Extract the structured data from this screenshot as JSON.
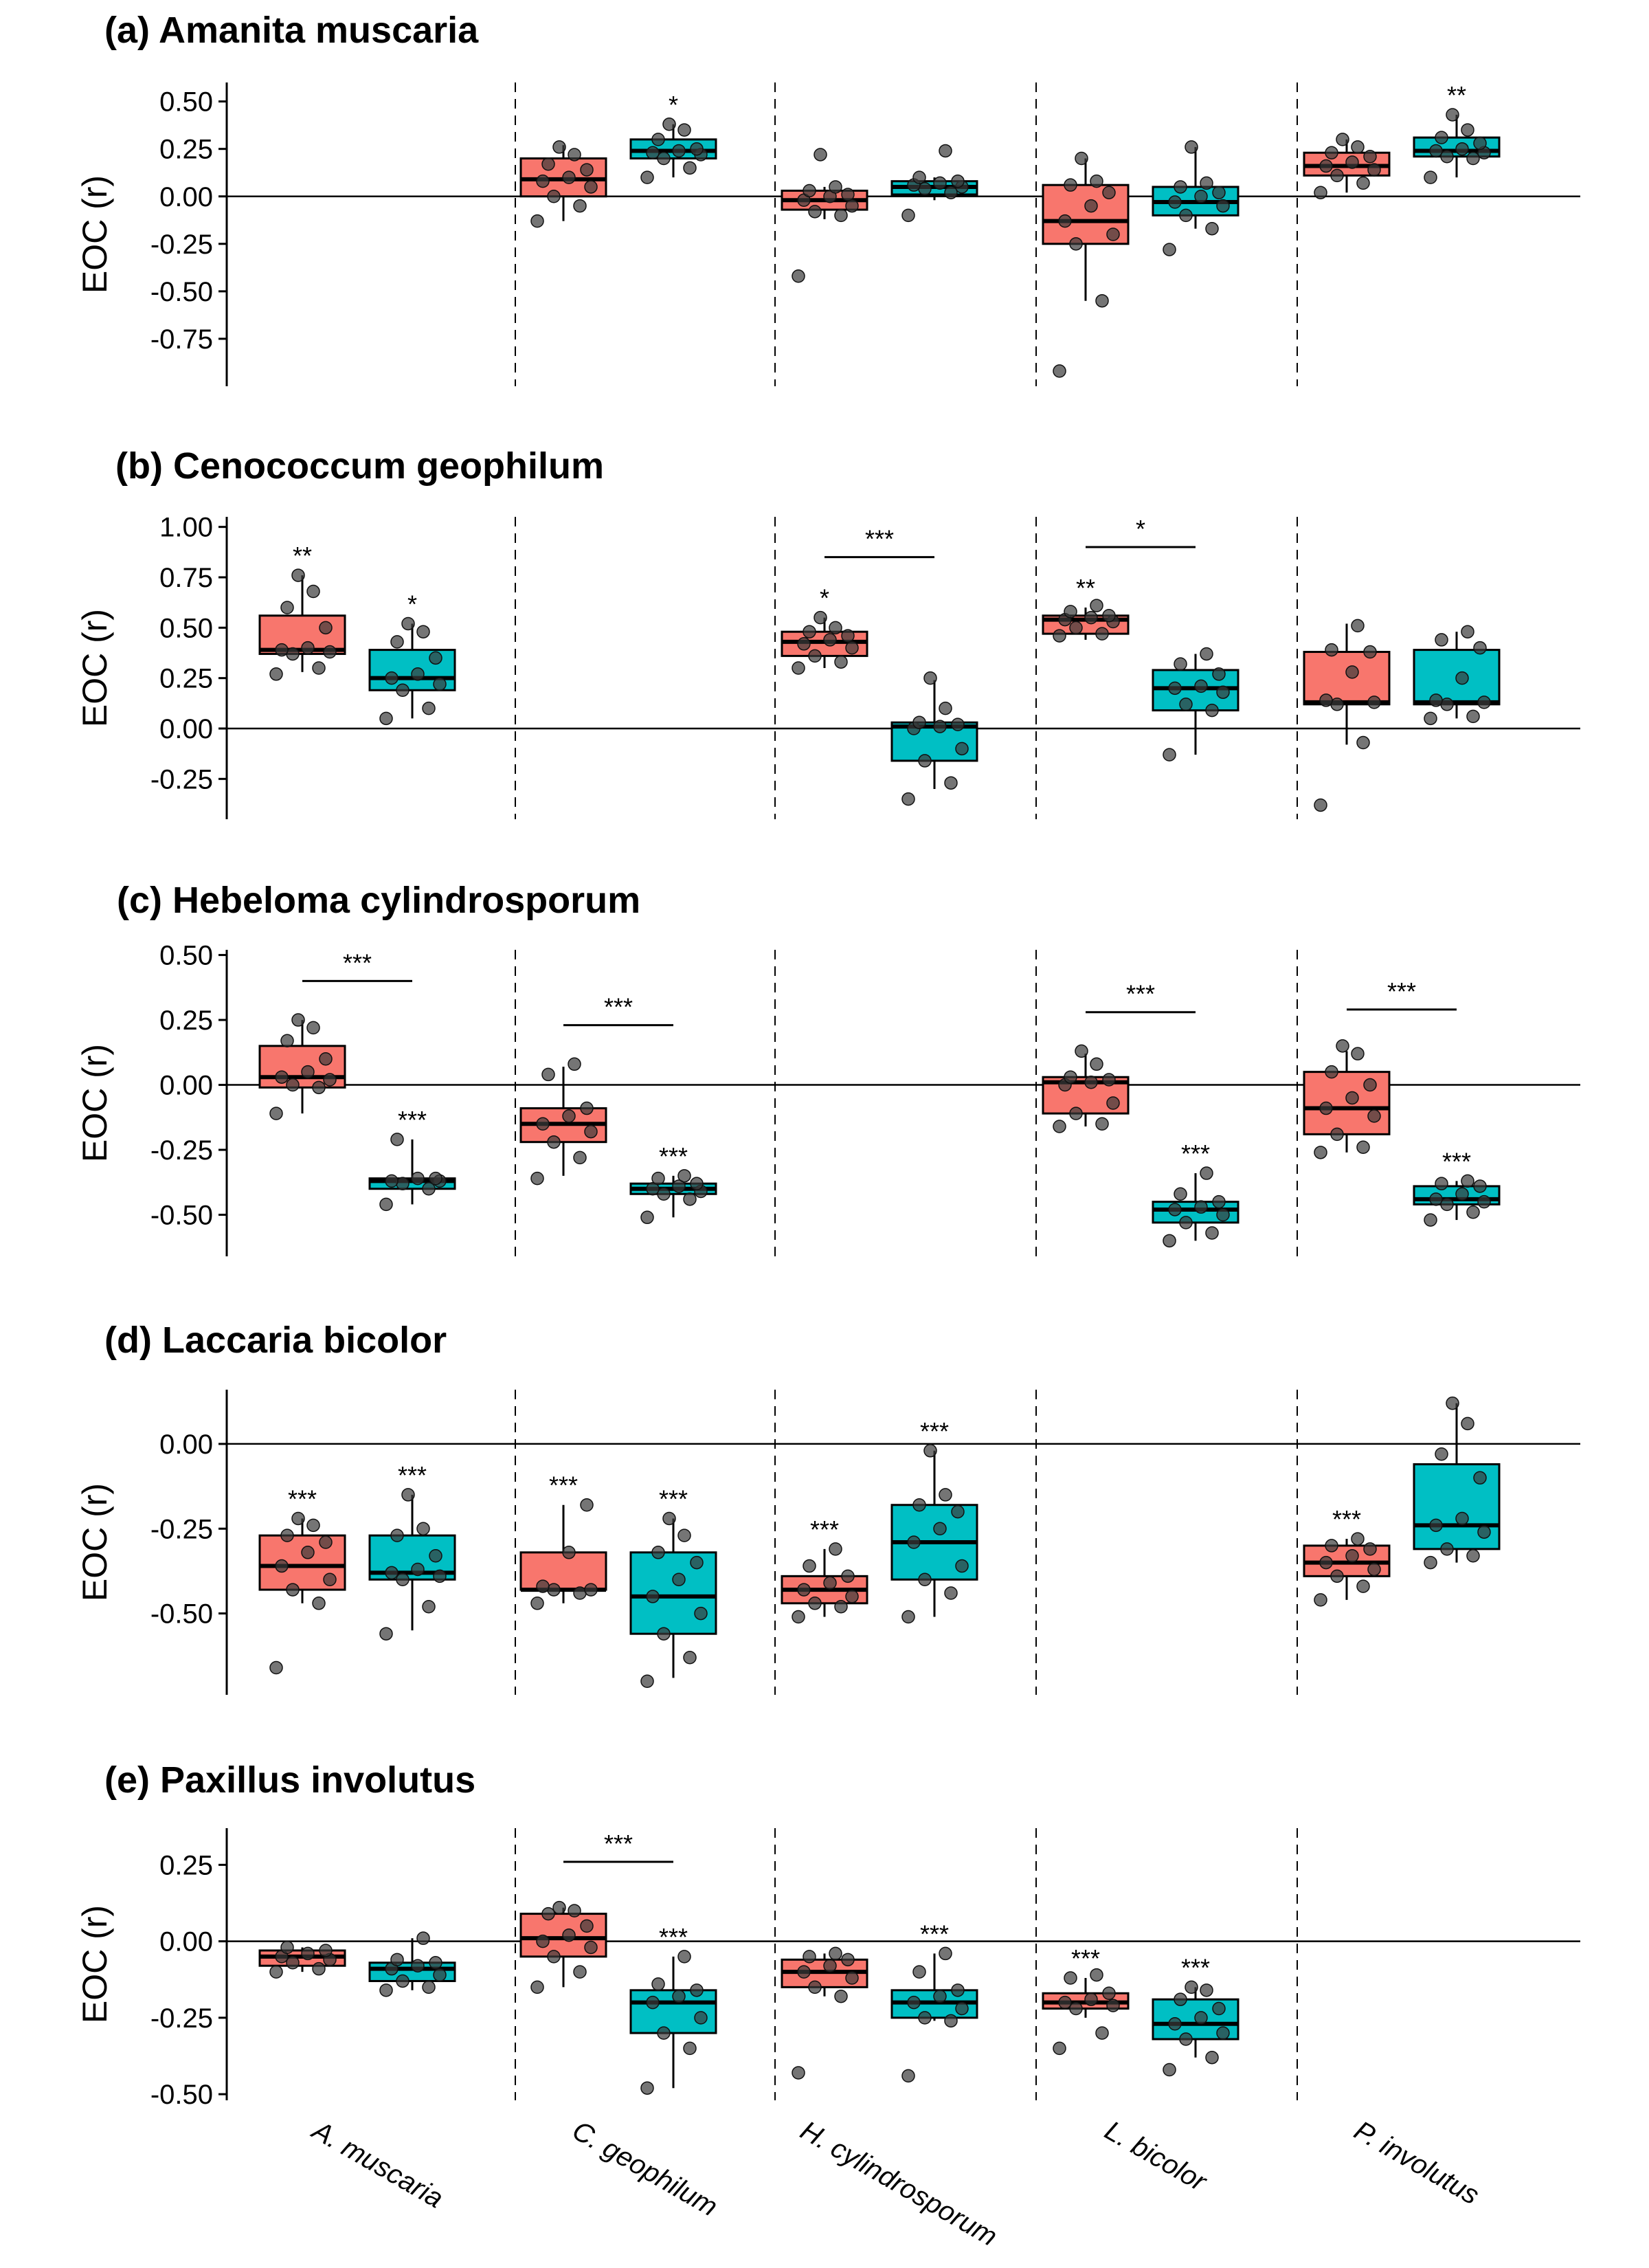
{
  "colors": {
    "group1": "#F8766D",
    "group2": "#00BFC4",
    "point": "#3a3a3a"
  },
  "chart_data": [
    {
      "type": "box",
      "title": "(a) Amanita muscaria",
      "ylabel": "EOC (r)",
      "categories": [
        "A. muscaria",
        "C. geophilum",
        "H. cylindrosporum",
        "L. bicolor",
        "P. involutus"
      ],
      "yticks": [
        0.5,
        0.25,
        0.0,
        -0.25,
        -0.5,
        -0.75
      ],
      "tick_labels": [
        "0.50",
        "0.25",
        "0.00",
        "-0.25",
        "-0.50",
        "-0.75"
      ],
      "ylim": [
        -1.0,
        0.6
      ],
      "boxes": [
        {
          "cat": 1,
          "group": 1,
          "q1": 0.0,
          "med": 0.09,
          "q3": 0.2,
          "wlo": -0.13,
          "whi": 0.27,
          "points": [
            -0.13,
            -0.05,
            0.0,
            0.05,
            0.08,
            0.1,
            0.14,
            0.17,
            0.22,
            0.26
          ],
          "sig": ""
        },
        {
          "cat": 1,
          "group": 2,
          "q1": 0.2,
          "med": 0.24,
          "q3": 0.3,
          "wlo": 0.1,
          "whi": 0.38,
          "points": [
            0.1,
            0.15,
            0.2,
            0.22,
            0.23,
            0.24,
            0.25,
            0.3,
            0.35,
            0.38
          ],
          "sig": "*"
        },
        {
          "cat": 2,
          "group": 1,
          "q1": -0.07,
          "med": -0.02,
          "q3": 0.03,
          "wlo": -0.12,
          "whi": 0.05,
          "points": [
            -0.42,
            -0.1,
            -0.08,
            -0.05,
            -0.02,
            0.0,
            0.01,
            0.03,
            0.05,
            0.22
          ],
          "sig": ""
        },
        {
          "cat": 2,
          "group": 2,
          "q1": 0.01,
          "med": 0.05,
          "q3": 0.08,
          "wlo": -0.02,
          "whi": 0.1,
          "points": [
            -0.1,
            0.02,
            0.04,
            0.05,
            0.06,
            0.07,
            0.08,
            0.1,
            0.24
          ],
          "sig": ""
        },
        {
          "cat": 3,
          "group": 1,
          "q1": -0.25,
          "med": -0.13,
          "q3": 0.06,
          "wlo": -0.55,
          "whi": 0.2,
          "points": [
            -0.92,
            -0.55,
            -0.25,
            -0.2,
            -0.13,
            -0.05,
            0.02,
            0.06,
            0.08,
            0.2
          ],
          "sig": ""
        },
        {
          "cat": 3,
          "group": 2,
          "q1": -0.1,
          "med": -0.03,
          "q3": 0.05,
          "wlo": -0.17,
          "whi": 0.26,
          "points": [
            -0.28,
            -0.17,
            -0.1,
            -0.05,
            -0.03,
            0.0,
            0.02,
            0.05,
            0.07,
            0.26
          ],
          "sig": ""
        },
        {
          "cat": 4,
          "group": 1,
          "q1": 0.11,
          "med": 0.16,
          "q3": 0.23,
          "wlo": 0.02,
          "whi": 0.3,
          "points": [
            0.02,
            0.07,
            0.11,
            0.14,
            0.16,
            0.18,
            0.21,
            0.23,
            0.26,
            0.3
          ],
          "sig": ""
        },
        {
          "cat": 4,
          "group": 2,
          "q1": 0.21,
          "med": 0.24,
          "q3": 0.31,
          "wlo": 0.1,
          "whi": 0.43,
          "points": [
            0.1,
            0.2,
            0.21,
            0.23,
            0.24,
            0.25,
            0.28,
            0.31,
            0.35,
            0.43
          ],
          "sig": "**"
        }
      ],
      "brackets": []
    },
    {
      "type": "box",
      "title": "(b) Cenococcum geophilum",
      "ylabel": "EOC (r)",
      "categories": [
        "A. muscaria",
        "C. geophilum",
        "H. cylindrosporum",
        "L. bicolor",
        "P. involutus"
      ],
      "yticks": [
        1.0,
        0.75,
        0.5,
        0.25,
        0.0,
        -0.25
      ],
      "tick_labels": [
        "1.00",
        "0.75",
        "0.50",
        "0.25",
        "0.00",
        "-0.25"
      ],
      "ylim": [
        -0.45,
        1.05
      ],
      "boxes": [
        {
          "cat": 0,
          "group": 1,
          "q1": 0.37,
          "med": 0.39,
          "q3": 0.56,
          "wlo": 0.28,
          "whi": 0.76,
          "points": [
            0.27,
            0.3,
            0.37,
            0.38,
            0.39,
            0.4,
            0.5,
            0.6,
            0.68,
            0.76
          ],
          "sig": "**"
        },
        {
          "cat": 0,
          "group": 2,
          "q1": 0.19,
          "med": 0.25,
          "q3": 0.39,
          "wlo": 0.05,
          "whi": 0.52,
          "points": [
            0.05,
            0.1,
            0.19,
            0.22,
            0.25,
            0.27,
            0.35,
            0.43,
            0.48,
            0.52
          ],
          "sig": "*"
        },
        {
          "cat": 2,
          "group": 1,
          "q1": 0.36,
          "med": 0.43,
          "q3": 0.48,
          "wlo": 0.3,
          "whi": 0.55,
          "points": [
            0.3,
            0.33,
            0.36,
            0.4,
            0.42,
            0.44,
            0.46,
            0.48,
            0.5,
            0.55
          ],
          "sig": "*"
        },
        {
          "cat": 2,
          "group": 2,
          "q1": -0.16,
          "med": 0.01,
          "q3": 0.03,
          "wlo": -0.3,
          "whi": 0.24,
          "points": [
            -0.35,
            -0.27,
            -0.16,
            -0.1,
            0.0,
            0.01,
            0.02,
            0.03,
            0.1,
            0.25
          ],
          "sig": ""
        },
        {
          "cat": 3,
          "group": 1,
          "q1": 0.47,
          "med": 0.54,
          "q3": 0.56,
          "wlo": 0.44,
          "whi": 0.6,
          "points": [
            0.46,
            0.47,
            0.5,
            0.53,
            0.54,
            0.55,
            0.56,
            0.58,
            0.61
          ],
          "sig": "**"
        },
        {
          "cat": 3,
          "group": 2,
          "q1": 0.09,
          "med": 0.2,
          "q3": 0.29,
          "wlo": -0.13,
          "whi": 0.37,
          "points": [
            -0.13,
            0.09,
            0.12,
            0.18,
            0.2,
            0.21,
            0.27,
            0.32,
            0.37
          ],
          "sig": ""
        },
        {
          "cat": 4,
          "group": 1,
          "q1": 0.12,
          "med": 0.13,
          "q3": 0.38,
          "wlo": -0.08,
          "whi": 0.52,
          "points": [
            -0.38,
            -0.07,
            0.12,
            0.13,
            0.14,
            0.28,
            0.38,
            0.39,
            0.51
          ],
          "sig": ""
        },
        {
          "cat": 4,
          "group": 2,
          "q1": 0.12,
          "med": 0.13,
          "q3": 0.39,
          "wlo": 0.05,
          "whi": 0.48,
          "points": [
            0.05,
            0.06,
            0.12,
            0.13,
            0.14,
            0.25,
            0.4,
            0.44,
            0.48
          ],
          "sig": ""
        }
      ],
      "brackets": [
        {
          "cat": 2,
          "y": 0.85,
          "label": "***"
        },
        {
          "cat": 3,
          "y": 0.9,
          "label": "*"
        }
      ]
    },
    {
      "type": "box",
      "title": "(c) Hebeloma cylindrosporum",
      "ylabel": "EOC (r)",
      "categories": [
        "A. muscaria",
        "C. geophilum",
        "H. cylindrosporum",
        "L. bicolor",
        "P. involutus"
      ],
      "yticks": [
        0.5,
        0.25,
        0.0,
        -0.25,
        -0.5
      ],
      "tick_labels": [
        "0.50",
        "0.25",
        "0.00",
        "-0.25",
        "-0.50"
      ],
      "ylim": [
        -0.66,
        0.52
      ],
      "boxes": [
        {
          "cat": 0,
          "group": 1,
          "q1": -0.01,
          "med": 0.03,
          "q3": 0.15,
          "wlo": -0.11,
          "whi": 0.25,
          "points": [
            -0.11,
            -0.01,
            0.0,
            0.02,
            0.03,
            0.05,
            0.1,
            0.17,
            0.22,
            0.25
          ],
          "sig": ""
        },
        {
          "cat": 0,
          "group": 2,
          "q1": -0.4,
          "med": -0.37,
          "q3": -0.36,
          "wlo": -0.46,
          "whi": -0.21,
          "points": [
            -0.46,
            -0.4,
            -0.38,
            -0.37,
            -0.37,
            -0.36,
            -0.36,
            -0.21
          ],
          "sig": "***"
        },
        {
          "cat": 1,
          "group": 1,
          "q1": -0.22,
          "med": -0.15,
          "q3": -0.09,
          "wlo": -0.35,
          "whi": 0.07,
          "points": [
            -0.36,
            -0.28,
            -0.22,
            -0.18,
            -0.15,
            -0.12,
            -0.09,
            0.04,
            0.08
          ],
          "sig": ""
        },
        {
          "cat": 1,
          "group": 2,
          "q1": -0.42,
          "med": -0.4,
          "q3": -0.38,
          "wlo": -0.51,
          "whi": -0.35,
          "points": [
            -0.51,
            -0.44,
            -0.42,
            -0.41,
            -0.4,
            -0.39,
            -0.38,
            -0.36,
            -0.35
          ],
          "sig": "***"
        },
        {
          "cat": 3,
          "group": 1,
          "q1": -0.11,
          "med": 0.01,
          "q3": 0.03,
          "wlo": -0.16,
          "whi": 0.12,
          "points": [
            -0.16,
            -0.15,
            -0.11,
            -0.07,
            0.0,
            0.01,
            0.02,
            0.03,
            0.08,
            0.13
          ],
          "sig": ""
        },
        {
          "cat": 3,
          "group": 2,
          "q1": -0.53,
          "med": -0.48,
          "q3": -0.45,
          "wlo": -0.6,
          "whi": -0.34,
          "points": [
            -0.6,
            -0.57,
            -0.53,
            -0.5,
            -0.48,
            -0.47,
            -0.45,
            -0.42,
            -0.34
          ],
          "sig": "***"
        },
        {
          "cat": 4,
          "group": 1,
          "q1": -0.19,
          "med": -0.09,
          "q3": 0.05,
          "wlo": -0.26,
          "whi": 0.13,
          "points": [
            -0.26,
            -0.24,
            -0.19,
            -0.12,
            -0.09,
            -0.05,
            0.0,
            0.05,
            0.12,
            0.15
          ],
          "sig": ""
        },
        {
          "cat": 4,
          "group": 2,
          "q1": -0.46,
          "med": -0.44,
          "q3": -0.39,
          "wlo": -0.52,
          "whi": -0.37,
          "points": [
            -0.52,
            -0.49,
            -0.46,
            -0.45,
            -0.44,
            -0.42,
            -0.39,
            -0.38,
            -0.37
          ],
          "sig": "***"
        }
      ],
      "brackets": [
        {
          "cat": 0,
          "y": 0.4,
          "label": "***"
        },
        {
          "cat": 1,
          "y": 0.23,
          "label": "***"
        },
        {
          "cat": 3,
          "y": 0.28,
          "label": "***"
        },
        {
          "cat": 4,
          "y": 0.29,
          "label": "***"
        }
      ]
    },
    {
      "type": "box",
      "title": "(d) Laccaria bicolor",
      "ylabel": "EOC (r)",
      "categories": [
        "A. muscaria",
        "C. geophilum",
        "H. cylindrosporum",
        "L. bicolor",
        "P. involutus"
      ],
      "yticks": [
        0.0,
        -0.25,
        -0.5
      ],
      "tick_labels": [
        "0.00",
        "-0.25",
        "-0.50"
      ],
      "ylim": [
        -0.74,
        0.16
      ],
      "boxes": [
        {
          "cat": 0,
          "group": 1,
          "q1": -0.43,
          "med": -0.36,
          "q3": -0.27,
          "wlo": -0.47,
          "whi": -0.22,
          "points": [
            -0.66,
            -0.47,
            -0.43,
            -0.4,
            -0.36,
            -0.32,
            -0.29,
            -0.27,
            -0.24,
            -0.22
          ],
          "sig": "***"
        },
        {
          "cat": 0,
          "group": 2,
          "q1": -0.4,
          "med": -0.38,
          "q3": -0.27,
          "wlo": -0.55,
          "whi": -0.15,
          "points": [
            -0.56,
            -0.48,
            -0.4,
            -0.39,
            -0.38,
            -0.37,
            -0.33,
            -0.27,
            -0.25,
            -0.15
          ],
          "sig": "***"
        },
        {
          "cat": 1,
          "group": 1,
          "q1": -0.43,
          "med": -0.43,
          "q3": -0.32,
          "wlo": -0.47,
          "whi": -0.18,
          "points": [
            -0.47,
            -0.44,
            -0.43,
            -0.43,
            -0.42,
            -0.32,
            -0.18
          ],
          "sig": "***"
        },
        {
          "cat": 1,
          "group": 2,
          "q1": -0.56,
          "med": -0.45,
          "q3": -0.32,
          "wlo": -0.69,
          "whi": -0.22,
          "points": [
            -0.7,
            -0.63,
            -0.56,
            -0.5,
            -0.45,
            -0.4,
            -0.35,
            -0.32,
            -0.27,
            -0.22
          ],
          "sig": "***"
        },
        {
          "cat": 2,
          "group": 1,
          "q1": -0.47,
          "med": -0.43,
          "q3": -0.39,
          "wlo": -0.51,
          "whi": -0.31,
          "points": [
            -0.51,
            -0.48,
            -0.47,
            -0.45,
            -0.43,
            -0.41,
            -0.39,
            -0.36,
            -0.31
          ],
          "sig": "***"
        },
        {
          "cat": 2,
          "group": 2,
          "q1": -0.4,
          "med": -0.29,
          "q3": -0.18,
          "wlo": -0.51,
          "whi": -0.02,
          "points": [
            -0.51,
            -0.44,
            -0.4,
            -0.36,
            -0.29,
            -0.25,
            -0.2,
            -0.18,
            -0.15,
            -0.02
          ],
          "sig": "***"
        },
        {
          "cat": 4,
          "group": 1,
          "q1": -0.39,
          "med": -0.35,
          "q3": -0.3,
          "wlo": -0.46,
          "whi": -0.28,
          "points": [
            -0.46,
            -0.42,
            -0.39,
            -0.37,
            -0.35,
            -0.33,
            -0.31,
            -0.3,
            -0.28
          ],
          "sig": "***"
        },
        {
          "cat": 4,
          "group": 2,
          "q1": -0.31,
          "med": -0.24,
          "q3": -0.06,
          "wlo": -0.35,
          "whi": 0.12,
          "points": [
            -0.35,
            -0.33,
            -0.31,
            -0.26,
            -0.24,
            -0.22,
            -0.1,
            -0.03,
            0.06,
            0.12
          ],
          "sig": ""
        }
      ],
      "brackets": []
    },
    {
      "type": "box",
      "title": "(e) Paxillus involutus",
      "ylabel": "EOC (r)",
      "categories": [
        "A. muscaria",
        "C. geophilum",
        "H. cylindrosporum",
        "L. bicolor",
        "P. involutus"
      ],
      "yticks": [
        0.25,
        0.0,
        -0.25,
        -0.5
      ],
      "tick_labels": [
        "0.25",
        "0.00",
        "-0.25",
        "-0.50"
      ],
      "ylim": [
        -0.52,
        0.37
      ],
      "boxes": [
        {
          "cat": 0,
          "group": 1,
          "q1": -0.08,
          "med": -0.05,
          "q3": -0.03,
          "wlo": -0.1,
          "whi": -0.02,
          "points": [
            -0.1,
            -0.09,
            -0.07,
            -0.06,
            -0.05,
            -0.04,
            -0.03,
            -0.02
          ],
          "sig": ""
        },
        {
          "cat": 0,
          "group": 2,
          "q1": -0.13,
          "med": -0.09,
          "q3": -0.07,
          "wlo": -0.16,
          "whi": 0.01,
          "points": [
            -0.16,
            -0.15,
            -0.13,
            -0.11,
            -0.09,
            -0.08,
            -0.07,
            -0.06,
            0.01
          ],
          "sig": ""
        },
        {
          "cat": 1,
          "group": 1,
          "q1": -0.05,
          "med": 0.01,
          "q3": 0.09,
          "wlo": -0.15,
          "whi": 0.11,
          "points": [
            -0.15,
            -0.1,
            -0.05,
            -0.02,
            0.0,
            0.02,
            0.05,
            0.09,
            0.1,
            0.11
          ],
          "sig": ""
        },
        {
          "cat": 1,
          "group": 2,
          "q1": -0.3,
          "med": -0.2,
          "q3": -0.16,
          "wlo": -0.48,
          "whi": -0.05,
          "points": [
            -0.48,
            -0.35,
            -0.3,
            -0.25,
            -0.2,
            -0.18,
            -0.16,
            -0.14,
            -0.05
          ],
          "sig": "***"
        },
        {
          "cat": 2,
          "group": 1,
          "q1": -0.15,
          "med": -0.1,
          "q3": -0.06,
          "wlo": -0.18,
          "whi": -0.04,
          "points": [
            -0.43,
            -0.18,
            -0.15,
            -0.12,
            -0.1,
            -0.08,
            -0.06,
            -0.05,
            -0.04
          ],
          "sig": ""
        },
        {
          "cat": 2,
          "group": 2,
          "q1": -0.25,
          "med": -0.2,
          "q3": -0.16,
          "wlo": -0.26,
          "whi": -0.04,
          "points": [
            -0.44,
            -0.26,
            -0.25,
            -0.22,
            -0.2,
            -0.18,
            -0.16,
            -0.1,
            -0.04
          ],
          "sig": "***"
        },
        {
          "cat": 3,
          "group": 1,
          "q1": -0.22,
          "med": -0.2,
          "q3": -0.17,
          "wlo": -0.25,
          "whi": -0.12,
          "points": [
            -0.35,
            -0.3,
            -0.22,
            -0.21,
            -0.2,
            -0.19,
            -0.17,
            -0.12,
            -0.11
          ],
          "sig": "***"
        },
        {
          "cat": 3,
          "group": 2,
          "q1": -0.32,
          "med": -0.27,
          "q3": -0.19,
          "wlo": -0.38,
          "whi": -0.15,
          "points": [
            -0.42,
            -0.38,
            -0.32,
            -0.3,
            -0.27,
            -0.25,
            -0.22,
            -0.19,
            -0.16,
            -0.15
          ],
          "sig": "***"
        }
      ],
      "brackets": [
        {
          "cat": 1,
          "y": 0.26,
          "label": "***"
        }
      ]
    }
  ]
}
